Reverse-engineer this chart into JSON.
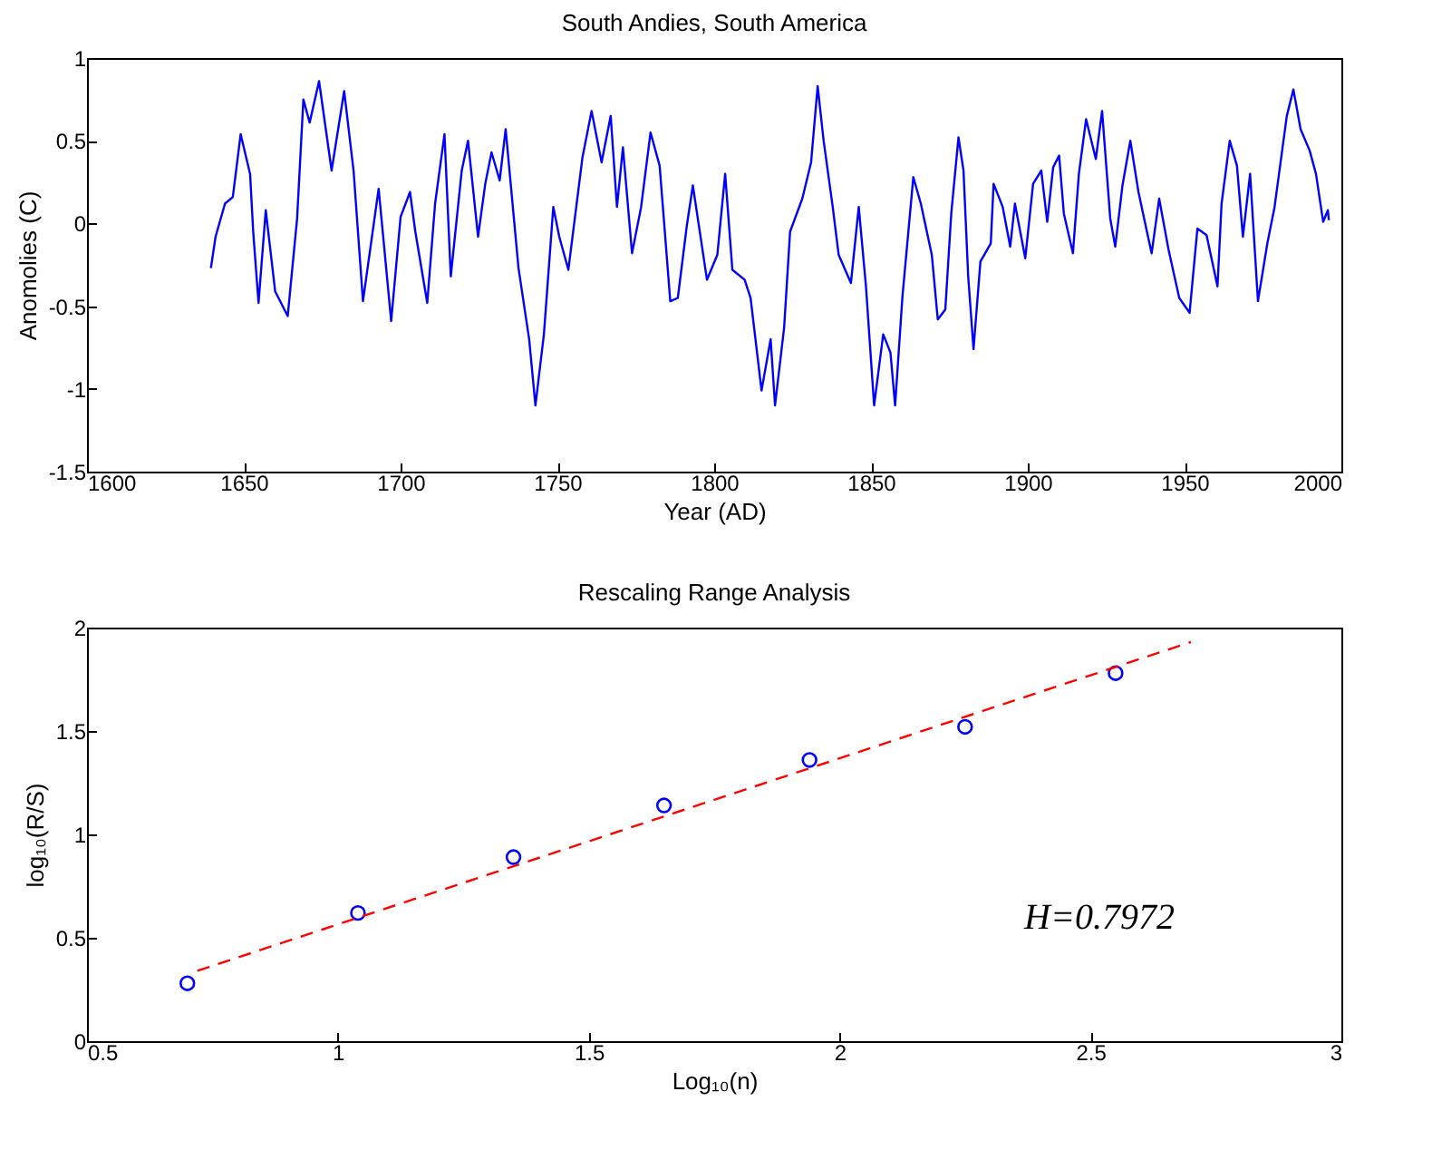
{
  "chart_data": [
    {
      "type": "line",
      "title": "South Andies, South America",
      "xlabel": "Year (AD)",
      "ylabel": "Anomolies (C)",
      "xlim": [
        1600,
        2000
      ],
      "xticks": [
        1600,
        1650,
        1700,
        1750,
        1800,
        1850,
        1900,
        1950,
        2000
      ],
      "ylim": [
        -1.5,
        1
      ],
      "yticks": [
        -1.5,
        -1,
        -0.5,
        0,
        0.5,
        1
      ],
      "grid": false,
      "series": [
        {
          "color": "#0000ff",
          "x": [
            1639.5,
            1641,
            1644,
            1646.5,
            1649,
            1652,
            1653,
            1654.7,
            1657,
            1660,
            1664,
            1667,
            1669,
            1671,
            1674,
            1678,
            1682,
            1685,
            1688,
            1693,
            1697,
            1700,
            1703,
            1704.7,
            1708.5,
            1711,
            1714,
            1716,
            1719.5,
            1721.5,
            1724.7,
            1727,
            1729,
            1731.6,
            1733.5,
            1737.6,
            1741,
            1743,
            1745.7,
            1748.7,
            1750.6,
            1753.5,
            1758,
            1760.9,
            1764.1,
            1767,
            1769,
            1770.9,
            1773.8,
            1776.7,
            1779.7,
            1782.6,
            1786,
            1788.4,
            1791.3,
            1793.2,
            1797.7,
            1801,
            1803.5,
            1805.8,
            1809.7,
            1811.6,
            1815.1,
            1818,
            1819.4,
            1822.3,
            1824.2,
            1828.1,
            1830.9,
            1833,
            1834.9,
            1837.8,
            1839.7,
            1843.6,
            1846.1,
            1848.4,
            1851,
            1853.9,
            1856.2,
            1857.7,
            1860,
            1863.5,
            1865.9,
            1869.4,
            1871.3,
            1873.7,
            1875.6,
            1877.9,
            1879.5,
            1881,
            1882.7,
            1884.9,
            1888.2,
            1889.1,
            1892,
            1894.4,
            1895.9,
            1899.2,
            1901.7,
            1904.3,
            1906.2,
            1908.1,
            1910,
            1911.5,
            1914.4,
            1916.3,
            1918.6,
            1921.7,
            1923.7,
            1926.3,
            1927.9,
            1930.2,
            1932.7,
            1935.3,
            1938,
            1939.5,
            1941.9,
            1944.9,
            1948.3,
            1951.6,
            1954.1,
            1957,
            1960.5,
            1961.8,
            1964.4,
            1966.7,
            1968.6,
            1970.9,
            1973.4,
            1976.4,
            1978.7,
            1982.6,
            1984.7,
            1987,
            1989.9,
            1991.9,
            1994.2,
            1995.7,
            1996
          ],
          "values": [
            -0.27,
            -0.08,
            0.12,
            0.16,
            0.54,
            0.3,
            -0.05,
            -0.48,
            0.08,
            -0.41,
            -0.56,
            0.03,
            0.75,
            0.61,
            0.86,
            0.32,
            0.8,
            0.32,
            -0.47,
            0.21,
            -0.59,
            0.04,
            0.19,
            -0.05,
            -0.48,
            0.12,
            0.54,
            -0.32,
            0.32,
            0.5,
            -0.08,
            0.24,
            0.43,
            0.26,
            0.57,
            -0.27,
            -0.7,
            -1.1,
            -0.67,
            0.1,
            -0.08,
            -0.28,
            0.4,
            0.68,
            0.37,
            0.65,
            0.1,
            0.46,
            -0.18,
            0.1,
            0.55,
            0.35,
            -0.47,
            -0.45,
            -0.01,
            0.23,
            -0.34,
            -0.19,
            0.3,
            -0.28,
            -0.34,
            -0.45,
            -1.01,
            -0.7,
            -1.1,
            -0.63,
            -0.05,
            0.15,
            0.37,
            0.83,
            0.5,
            0.1,
            -0.19,
            -0.36,
            0.1,
            -0.38,
            -1.1,
            -0.67,
            -0.78,
            -1.1,
            -0.45,
            0.28,
            0.12,
            -0.19,
            -0.58,
            -0.52,
            0.06,
            0.52,
            0.32,
            -0.32,
            -0.76,
            -0.23,
            -0.12,
            0.24,
            0.1,
            -0.14,
            0.12,
            -0.21,
            0.24,
            0.32,
            0.01,
            0.34,
            0.41,
            0.06,
            -0.18,
            0.3,
            0.63,
            0.39,
            0.68,
            0.03,
            -0.14,
            0.23,
            0.5,
            0.19,
            -0.05,
            -0.18,
            0.15,
            -0.16,
            -0.45,
            -0.54,
            -0.03,
            -0.07,
            -0.38,
            0.12,
            0.5,
            0.35,
            -0.08,
            0.3,
            -0.47,
            -0.12,
            0.1,
            0.65,
            0.81,
            0.57,
            0.44,
            0.3,
            0.01,
            0.08,
            0.02
          ]
        }
      ]
    },
    {
      "type": "scatter",
      "title": "Rescaling Range Analysis",
      "xlabel": "Log₁₀(n)",
      "ylabel": "log₁₀(R/S)",
      "xlim": [
        0.5,
        3
      ],
      "xticks": [
        0.5,
        1,
        1.5,
        2,
        2.5,
        3
      ],
      "ylim": [
        0,
        2
      ],
      "yticks": [
        0,
        0.5,
        1,
        1.5,
        2
      ],
      "grid": false,
      "annotations": [
        "H=0.7972"
      ],
      "series": [
        {
          "marker": "circle",
          "color": "#0000ff",
          "x": [
            0.7,
            1.04,
            1.35,
            1.65,
            1.94,
            2.25,
            2.55
          ],
          "values": [
            0.28,
            0.62,
            0.89,
            1.14,
            1.36,
            1.52,
            1.78
          ]
        },
        {
          "type": "line",
          "color": "#ff0000",
          "line_style": "dashed",
          "x": [
            0.72,
            2.7
          ],
          "values": [
            0.34,
            1.93
          ]
        }
      ]
    }
  ]
}
